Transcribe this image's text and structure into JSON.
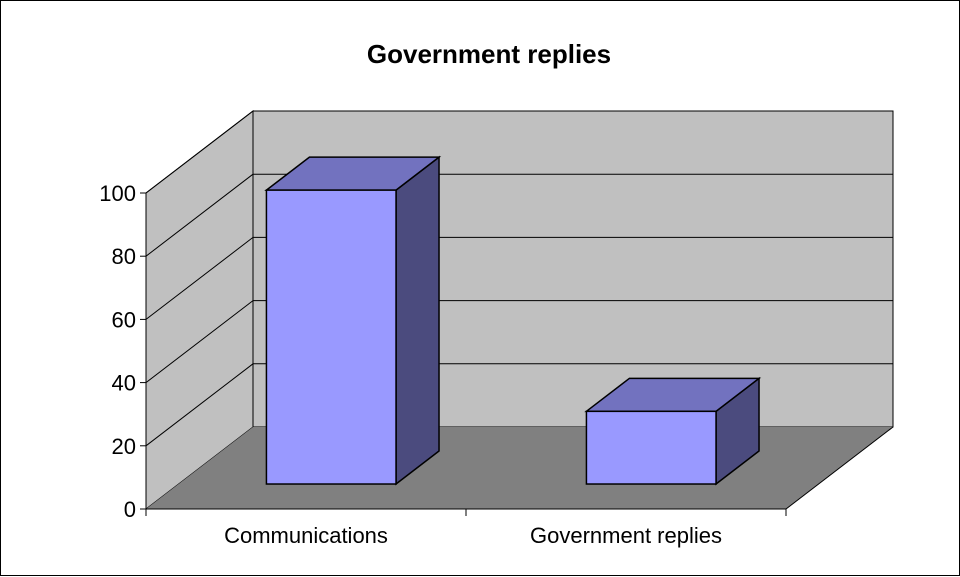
{
  "chart_data": {
    "type": "bar",
    "title": "Government replies",
    "categories": [
      "Communications",
      "Government replies"
    ],
    "values": [
      93,
      23
    ],
    "ylim": [
      0,
      100
    ],
    "yticks": [
      "0",
      "20",
      "40",
      "60",
      "80",
      "100"
    ],
    "grid": true,
    "legend": "none",
    "colors": {
      "bar_front": "#9999ff",
      "bar_side": "#4b4b7e",
      "bar_top": "#7272bf",
      "back_wall": "#c0c0c0",
      "side_wall": "#c0c0c0",
      "floor": "#808080",
      "gridline": "#000000"
    }
  }
}
